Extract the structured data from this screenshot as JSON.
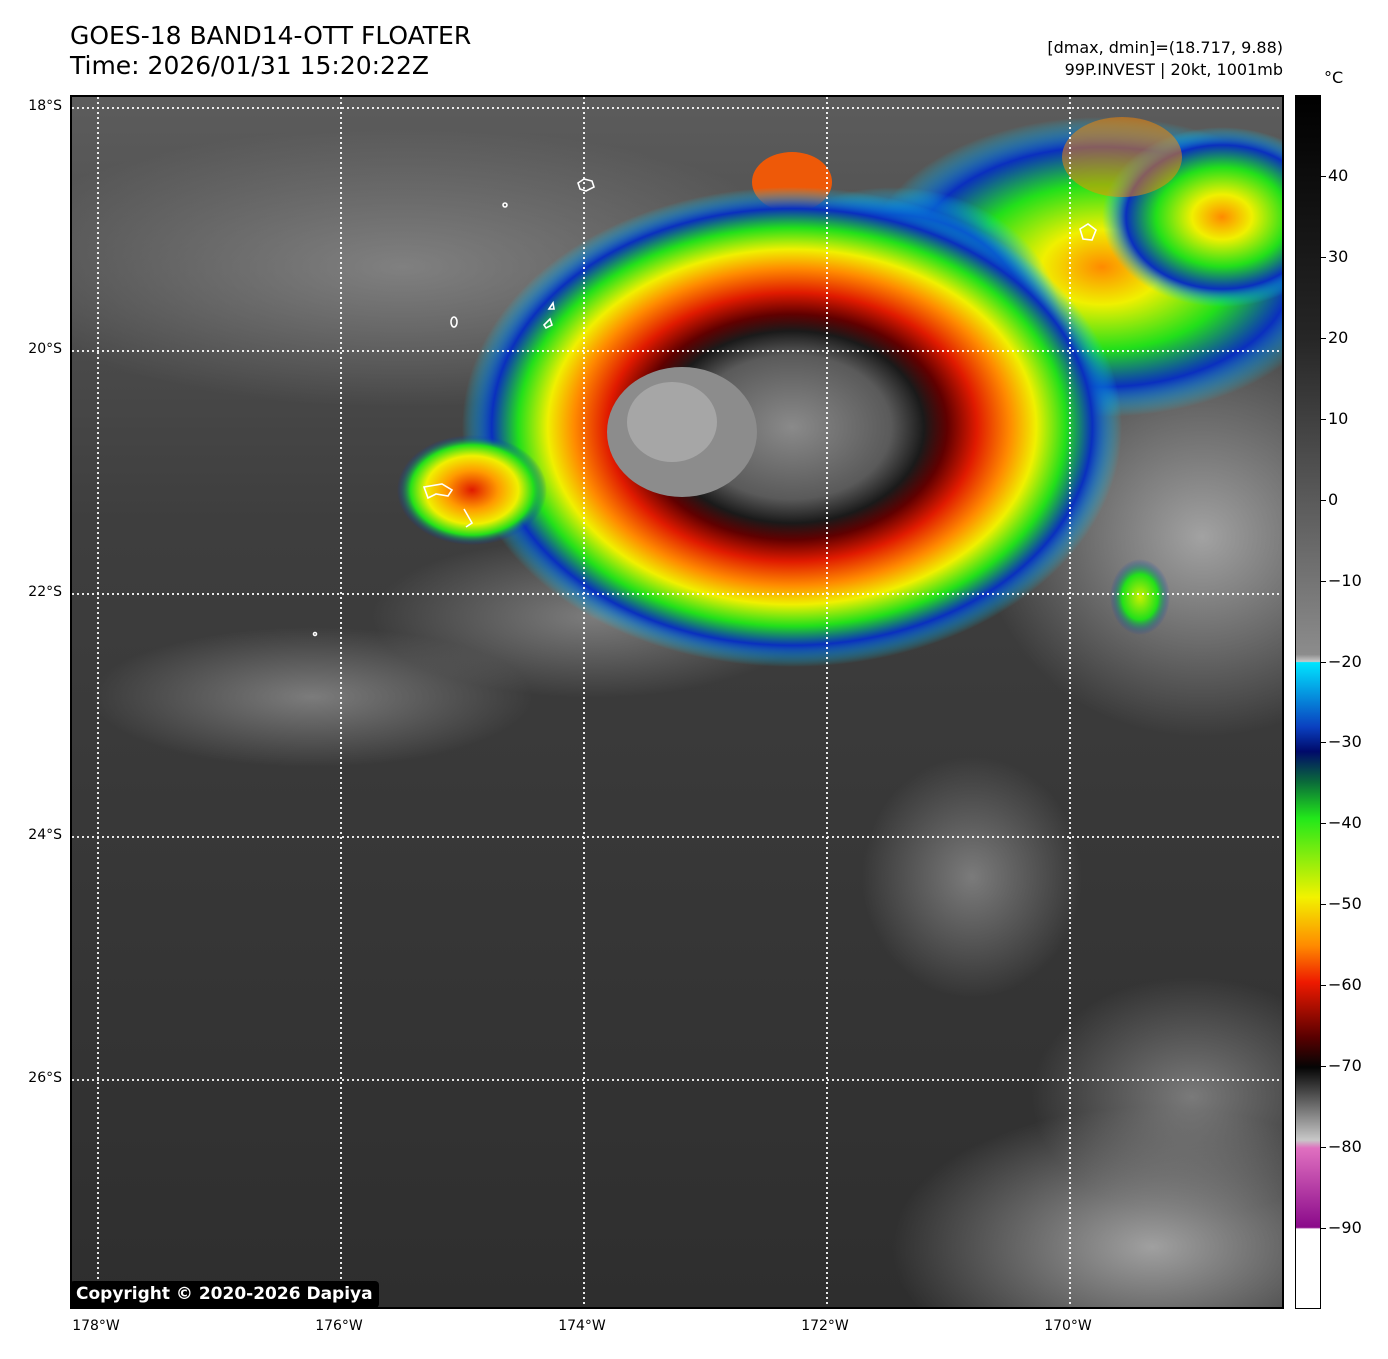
{
  "header": {
    "title_line1": "GOES-18 BAND14-OTT FLOATER",
    "title_line2": "Time: 2026/01/31 15:20:22Z",
    "meta_line1": "[dmax, dmin]=(18.717, 9.88)",
    "meta_line2": "99P.INVEST | 20kt, 1001mb"
  },
  "map": {
    "lat_labels": [
      "18°S",
      "20°S",
      "22°S",
      "24°S",
      "26°S"
    ],
    "lon_labels": [
      "178°W",
      "176°W",
      "174°W",
      "172°W",
      "170°W"
    ],
    "lat_range_deg": [
      -28.05,
      -17.92
    ],
    "lon_range_deg": [
      -178.2,
      -168.2
    ],
    "gridlines": "dotted white",
    "storm_center": {
      "lat": -20.7,
      "lon": -173.0
    },
    "coastline_color": "#ffffff"
  },
  "colorbar": {
    "unit": "°C",
    "tick_labels": [
      "40",
      "30",
      "20",
      "10",
      "0",
      "−10",
      "−20",
      "−30",
      "−40",
      "−50",
      "−60",
      "−70",
      "−80",
      "−90"
    ],
    "tick_values": [
      40,
      30,
      20,
      10,
      0,
      -10,
      -20,
      -30,
      -40,
      -50,
      -60,
      -70,
      -80,
      -90
    ],
    "range": [
      -100,
      50
    ]
  },
  "copyright": "Copyright © 2020-2026 Dapiya",
  "colors": {
    "background_cloud": "#3a3a3a",
    "cyan": "#00e5ff",
    "blue": "#0a2fbf",
    "navy": "#001080",
    "green": "#22e81a",
    "yellow": "#f2f200",
    "orange": "#ff9a00",
    "red": "#ee1a00",
    "dark_red": "#8a0000",
    "black": "#050505",
    "magenta": "#c050c0",
    "white": "#ffffff"
  }
}
